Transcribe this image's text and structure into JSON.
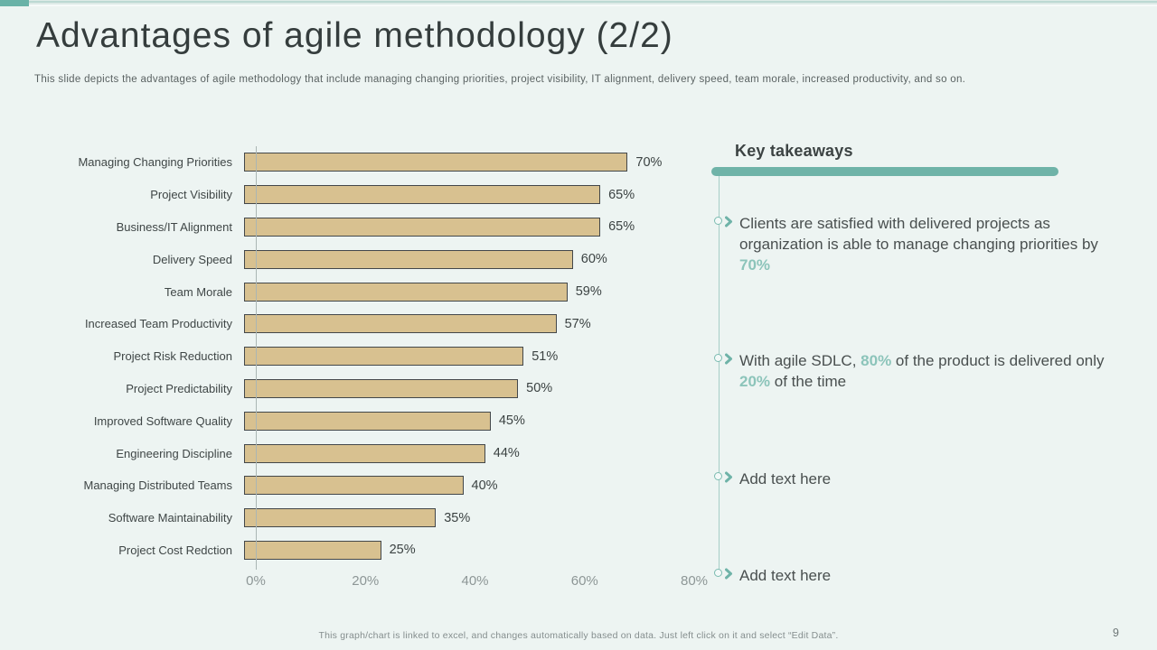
{
  "header": {
    "title": "Advantages of agile methodology (2/2)",
    "subtitle": "This slide depicts the advantages of agile methodology that include managing changing priorities, project visibility, IT  alignment, delivery speed, team morale, increased productivity, and so on."
  },
  "chart_data": {
    "type": "bar",
    "orientation": "horizontal",
    "categories": [
      "Managing Changing Priorities",
      "Project Visibility",
      "Business/IT Alignment",
      "Delivery Speed",
      "Team Morale",
      "Increased Team Productivity",
      "Project Risk Reduction",
      "Project Predictability",
      "Improved Software Quality",
      "Engineering Discipline",
      "Managing Distributed Teams",
      "Software Maintainability",
      "Project Cost Redction"
    ],
    "values": [
      70,
      65,
      65,
      60,
      59,
      57,
      51,
      50,
      45,
      44,
      40,
      35,
      25
    ],
    "value_labels": [
      "70%",
      "65%",
      "65%",
      "60%",
      "59%",
      "57%",
      "51%",
      "50%",
      "45%",
      "44%",
      "40%",
      "35%",
      "25%"
    ],
    "x_ticks": [
      "0%",
      "20%",
      "40%",
      "60%",
      "80%"
    ],
    "xlim": [
      0,
      80
    ],
    "grid": false,
    "legend": "none",
    "bar_color": "#d8c190",
    "bar_border_color": "#43474a"
  },
  "takeaways": {
    "heading": "Key takeaways",
    "accent_color": "#6fb3a8",
    "highlight_color": "#8cc4ba",
    "items": [
      {
        "segments": [
          {
            "text": "Clients are satisfied with delivered projects as organization is able to manage changing priorities by ",
            "highlight": false
          },
          {
            "text": "70%",
            "highlight": true
          }
        ]
      },
      {
        "segments": [
          {
            "text": "With agile SDLC, ",
            "highlight": false
          },
          {
            "text": "80%",
            "highlight": true
          },
          {
            "text": " of the product is delivered only ",
            "highlight": false
          },
          {
            "text": "20%",
            "highlight": true
          },
          {
            "text": " of the time",
            "highlight": false
          }
        ]
      },
      {
        "segments": [
          {
            "text": "Add text here",
            "highlight": false
          }
        ]
      },
      {
        "segments": [
          {
            "text": "Add text here",
            "highlight": false
          }
        ]
      }
    ]
  },
  "footer": {
    "note": "This graph/chart is linked to excel, and changes automatically based on data. Just left click on it and select “Edit Data”.",
    "page_number": "9"
  }
}
